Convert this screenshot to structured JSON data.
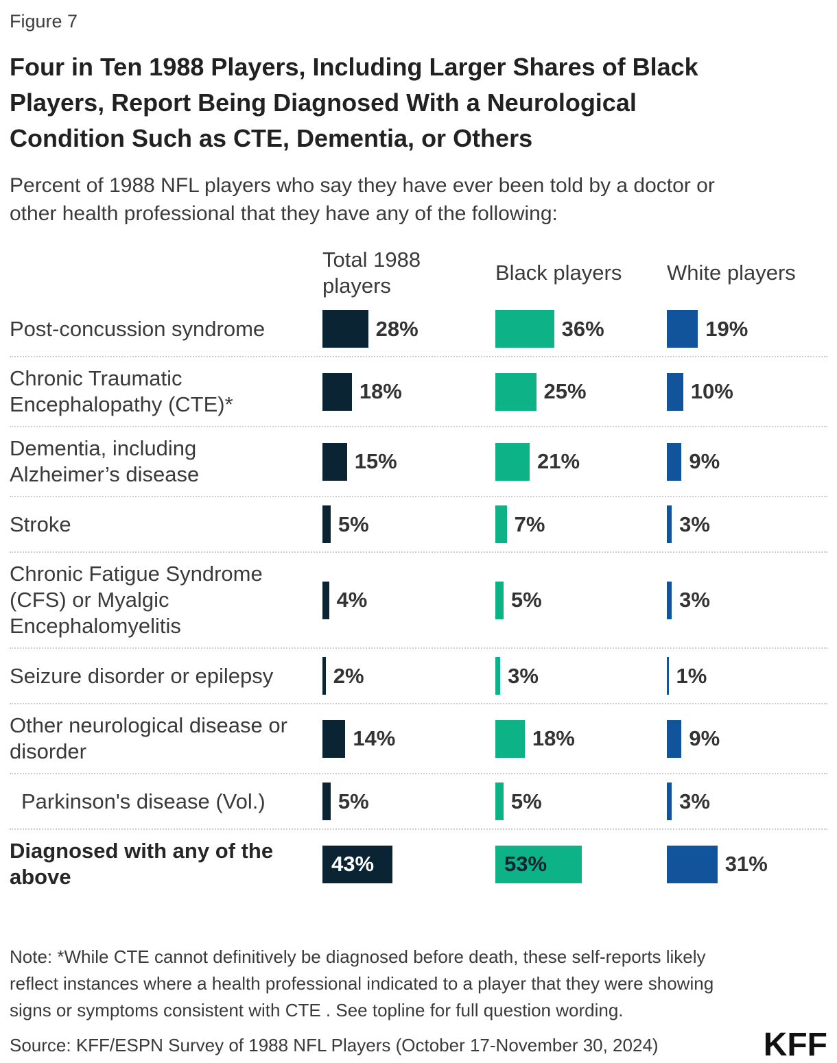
{
  "figure_label": "Figure 7",
  "title": "Four in Ten 1988 Players, Including Larger Shares of Black\nPlayers, Report Being Diagnosed With a Neurological\nCondition Such as CTE, Dementia, or Others",
  "subtitle": "Percent of 1988 NFL players who say they have ever been told by a doctor or\nother health professional that they have any of the following:",
  "colors": {
    "total": "#0a2433",
    "black_players": "#0db287",
    "white_players": "#11549c",
    "value_label_on_navy": "#ffffff",
    "value_label_on_green": "#0a2433",
    "separator": "#cccccc"
  },
  "columns": [
    {
      "key": "total",
      "label": "Total 1988\nplayers",
      "color": "#0a2433"
    },
    {
      "key": "black",
      "label": "Black players",
      "color": "#0db287"
    },
    {
      "key": "white",
      "label": "White players",
      "color": "#11549c"
    }
  ],
  "chart_data": {
    "type": "bar",
    "orientation": "horizontal",
    "unit": "percent",
    "title": "Four in Ten 1988 Players, Including Larger Shares of Black Players, Report Being Diagnosed With a Neurological Condition Such as CTE, Dementia, or Others",
    "subtitle": "Percent of 1988 NFL players who say they have ever been told by a doctor or other health professional that they have any of the following:",
    "categories": [
      "Post-concussion syndrome",
      "Chronic Traumatic Encephalopathy (CTE)*",
      "Dementia, including Alzheimer’s disease",
      "Stroke",
      "Chronic Fatigue Syndrome (CFS) or Myalgic Encephalomyelitis",
      "Seizure disorder or epilepsy",
      "Other neurological disease or disorder",
      "Parkinson's disease (Vol.)",
      "Diagnosed with any of the above"
    ],
    "series": [
      {
        "name": "Total 1988 players",
        "color": "#0a2433",
        "values": [
          28,
          18,
          15,
          5,
          4,
          2,
          14,
          5,
          43
        ]
      },
      {
        "name": "Black players",
        "color": "#0db287",
        "values": [
          36,
          25,
          21,
          7,
          5,
          3,
          18,
          5,
          53
        ]
      },
      {
        "name": "White players",
        "color": "#11549c",
        "values": [
          19,
          10,
          9,
          3,
          3,
          1,
          9,
          3,
          31
        ]
      }
    ],
    "xlim": [
      0,
      60
    ],
    "grid": false,
    "legend_position": "column-headers",
    "value_label_format": "{value}%"
  },
  "rows": [
    {
      "label": "Post-concussion syndrome",
      "values": [
        28,
        36,
        19
      ],
      "value_labels": [
        "28%",
        "36%",
        "19%"
      ]
    },
    {
      "label": "Chronic Traumatic\nEncephalopathy (CTE)*",
      "values": [
        18,
        25,
        10
      ],
      "value_labels": [
        "18%",
        "25%",
        "10%"
      ]
    },
    {
      "label": "Dementia, including\nAlzheimer’s disease",
      "values": [
        15,
        21,
        9
      ],
      "value_labels": [
        "15%",
        "21%",
        "9%"
      ]
    },
    {
      "label": "Stroke",
      "values": [
        5,
        7,
        3
      ],
      "value_labels": [
        "5%",
        "7%",
        "3%"
      ]
    },
    {
      "label": "Chronic Fatigue Syndrome\n(CFS) or Myalgic\nEncephalomyelitis",
      "values": [
        4,
        5,
        3
      ],
      "value_labels": [
        "4%",
        "5%",
        "3%"
      ]
    },
    {
      "label": "Seizure disorder or epilepsy",
      "values": [
        2,
        3,
        1
      ],
      "value_labels": [
        "2%",
        "3%",
        "1%"
      ]
    },
    {
      "label": "Other neurological disease or\ndisorder",
      "values": [
        14,
        18,
        9
      ],
      "value_labels": [
        "14%",
        "18%",
        "9%"
      ]
    },
    {
      "label": "Parkinson's disease (Vol.)",
      "indent": true,
      "values": [
        5,
        5,
        3
      ],
      "value_labels": [
        "5%",
        "5%",
        "3%"
      ]
    },
    {
      "label": "Diagnosed with any of the\nabove",
      "bold": true,
      "values": [
        43,
        53,
        31
      ],
      "value_labels": [
        "43%",
        "53%",
        "31%"
      ],
      "labels_inside": [
        true,
        true,
        false
      ]
    }
  ],
  "note": "Note: *While CTE cannot definitively be diagnosed before death, these self-reports likely\nreflect instances where a health professional indicated to a player that they were showing\nsigns or symptoms consistent with CTE . See topline for full question wording.",
  "source": "Source: KFF/ESPN Survey of 1988 NFL Players (October 17-November 30, 2024)",
  "logo_text": "KFF"
}
